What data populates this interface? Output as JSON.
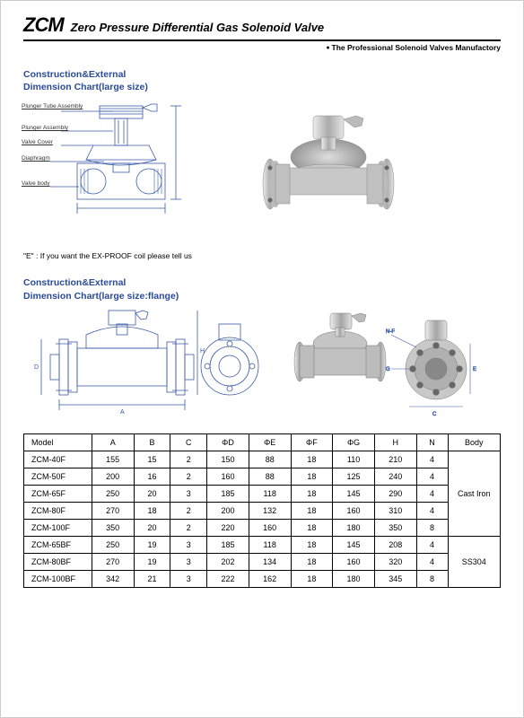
{
  "header": {
    "logo": "ZCM",
    "title": "Zero Pressure Differential Gas Solenoid Valve",
    "tagline": "The Professional Solenoid Valves Manufactory"
  },
  "section1": {
    "heading_line1": "Construction&External",
    "heading_line2": "Dimension Chart(large size)",
    "labels": {
      "plunger_tube": "Plunger Tube Assembly",
      "plunger": "Plunger Assembly",
      "valve_cover": "Valve Cover",
      "diaphragm": "Diaphragm",
      "valve_body": "Valve body"
    },
    "note": "\"E\" : If you want the EX-PROOF coil please tell us"
  },
  "section2": {
    "heading_line1": "Construction&External",
    "heading_line2": "Dimension Chart(large size:flange)"
  },
  "table": {
    "columns": [
      "Model",
      "A",
      "B",
      "C",
      "ΦD",
      "ΦE",
      "ΦF",
      "ΦG",
      "H",
      "N",
      "Body"
    ],
    "col_widths_pct": [
      13,
      8,
      7,
      7,
      8,
      8,
      8,
      8,
      8,
      6,
      10
    ],
    "rows": [
      [
        "ZCM-40F",
        "155",
        "15",
        "2",
        "150",
        "88",
        "18",
        "110",
        "210",
        "4"
      ],
      [
        "ZCM-50F",
        "200",
        "16",
        "2",
        "160",
        "88",
        "18",
        "125",
        "240",
        "4"
      ],
      [
        "ZCM-65F",
        "250",
        "20",
        "3",
        "185",
        "118",
        "18",
        "145",
        "290",
        "4"
      ],
      [
        "ZCM-80F",
        "270",
        "18",
        "2",
        "200",
        "132",
        "18",
        "160",
        "310",
        "4"
      ],
      [
        "ZCM-100F",
        "350",
        "20",
        "2",
        "220",
        "160",
        "18",
        "180",
        "350",
        "8"
      ],
      [
        "ZCM-65BF",
        "250",
        "19",
        "3",
        "185",
        "118",
        "18",
        "145",
        "208",
        "4"
      ],
      [
        "ZCM-80BF",
        "270",
        "19",
        "3",
        "202",
        "134",
        "18",
        "160",
        "320",
        "4"
      ],
      [
        "ZCM-100BF",
        "342",
        "21",
        "3",
        "222",
        "162",
        "18",
        "180",
        "345",
        "8"
      ]
    ],
    "body_groups": [
      {
        "label": "Cast Iron",
        "span": 5
      },
      {
        "label": "SS304",
        "span": 3
      }
    ]
  },
  "colors": {
    "heading": "#2a4a9a",
    "diagram_line": "#3a5aa8",
    "metal_light": "#d5d5d5",
    "metal_mid": "#b0b0b0",
    "metal_dark": "#888"
  }
}
